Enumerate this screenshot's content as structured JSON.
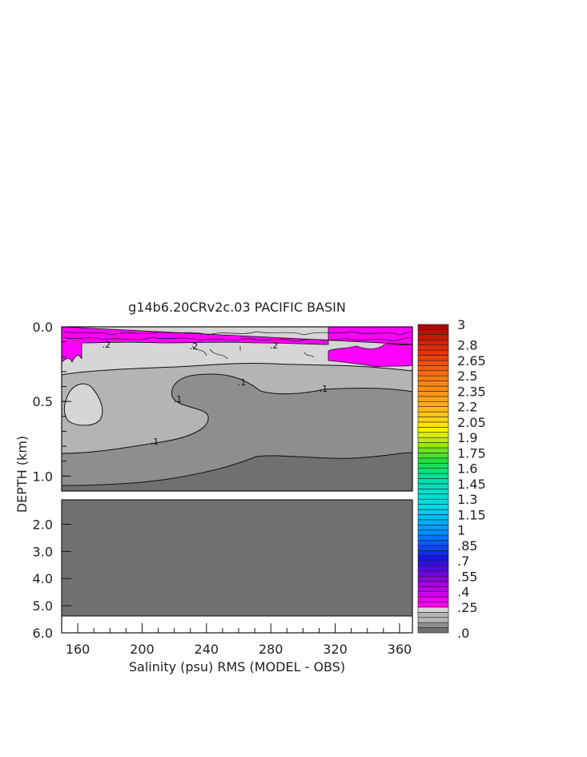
{
  "chart_data": {
    "type": "contour",
    "title": "g14b6.20CRv2c.03 PACIFIC BASIN",
    "xlabel": "Salinity (psu) RMS (MODEL - OBS)",
    "ylabel": "DEPTH (km)",
    "x_ticks": [
      "160",
      "200",
      "240",
      "280",
      "320",
      "360"
    ],
    "x_range": [
      150,
      368
    ],
    "upper_panel": {
      "y_range": [
        0.0,
        1.1
      ],
      "y_ticks": [
        "0.0",
        "0.5",
        "1.0"
      ]
    },
    "lower_panel": {
      "y_range": [
        1.1,
        6.0
      ],
      "y_ticks": [
        "2.0",
        "3.0",
        "4.0",
        "5.0",
        "6.0"
      ]
    },
    "contour_labels": [
      ".2",
      ".2",
      ".2",
      ".1",
      ".1",
      ".1",
      ".1"
    ],
    "colorbar": {
      "labels": [
        "3",
        "2.8",
        "2.65",
        "2.5",
        "2.35",
        "2.2",
        "2.05",
        "1.9",
        "1.75",
        "1.6",
        "1.45",
        "1.3",
        "1.15",
        "1",
        ".85",
        ".7",
        ".55",
        ".4",
        ".25",
        ".0"
      ],
      "levels": [
        0,
        0.05,
        0.1,
        0.15,
        0.2,
        0.25,
        0.3,
        0.35,
        0.4,
        0.45,
        0.5,
        0.55,
        0.6,
        0.65,
        0.7,
        0.75,
        0.8,
        0.85,
        0.9,
        0.95,
        1.0,
        1.05,
        1.1,
        1.15,
        1.2,
        1.25,
        1.3,
        1.35,
        1.4,
        1.45,
        1.5,
        1.55,
        1.6,
        1.65,
        1.7,
        1.75,
        1.8,
        1.85,
        1.9,
        1.95,
        2.0,
        2.05,
        2.1,
        2.15,
        2.2,
        2.25,
        2.3,
        2.35,
        2.4,
        2.45,
        2.5,
        2.55,
        2.6,
        2.65,
        2.7,
        2.75,
        2.8,
        2.85,
        2.9,
        2.95,
        3.0
      ],
      "fill_colors": {
        "lt_0.05": "#707070",
        "0.05_0.1": "#8e8e8e",
        "0.1_0.2": "#b4b4b4",
        "0.2_0.25": "#d6d6d6",
        "ge_0.25": "#ff00ff"
      }
    }
  }
}
